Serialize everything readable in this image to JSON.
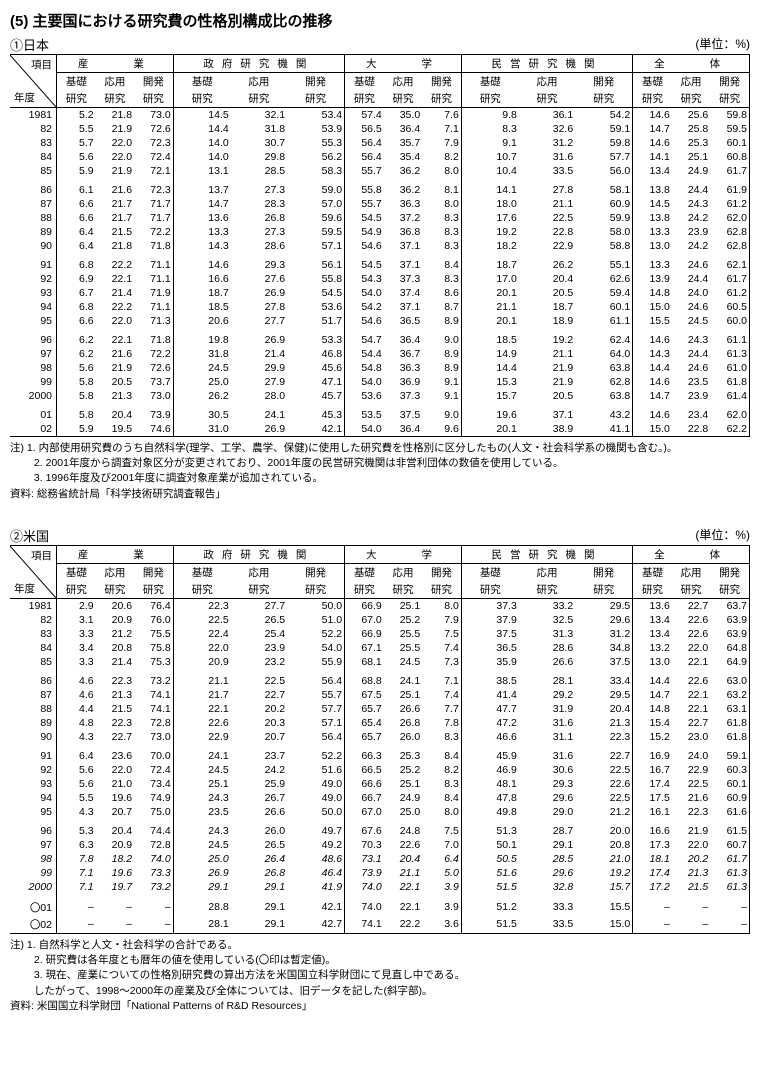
{
  "title": "(5)  主要国における研究費の性格別構成比の推移",
  "unit": "(単位：%)",
  "header": {
    "item": "項目",
    "year": "年度",
    "groups": [
      "産　　業",
      "政府研究機関",
      "大　　学",
      "民営研究機関",
      "全　　体"
    ],
    "subs_top": [
      "基礎",
      "応用",
      "開発"
    ],
    "subs_bot": [
      "研究",
      "研究",
      "研究"
    ]
  },
  "japan": {
    "label": "①日本",
    "rows": [
      {
        "y": "1981",
        "v": [
          "5.2",
          "21.8",
          "73.0",
          "14.5",
          "32.1",
          "53.4",
          "57.4",
          "35.0",
          "7.6",
          "9.8",
          "36.1",
          "54.2",
          "14.6",
          "25.6",
          "59.8"
        ]
      },
      {
        "y": "82",
        "v": [
          "5.5",
          "21.9",
          "72.6",
          "14.4",
          "31.8",
          "53.9",
          "56.5",
          "36.4",
          "7.1",
          "8.3",
          "32.6",
          "59.1",
          "14.7",
          "25.8",
          "59.5"
        ]
      },
      {
        "y": "83",
        "v": [
          "5.7",
          "22.0",
          "72.3",
          "14.0",
          "30.7",
          "55.3",
          "56.4",
          "35.7",
          "7.9",
          "9.1",
          "31.2",
          "59.8",
          "14.6",
          "25.3",
          "60.1"
        ]
      },
      {
        "y": "84",
        "v": [
          "5.6",
          "22.0",
          "72.4",
          "14.0",
          "29.8",
          "56.2",
          "56.4",
          "35.4",
          "8.2",
          "10.7",
          "31.6",
          "57.7",
          "14.1",
          "25.1",
          "60.8"
        ]
      },
      {
        "y": "85",
        "v": [
          "5.9",
          "21.9",
          "72.1",
          "13.1",
          "28.5",
          "58.3",
          "55.7",
          "36.2",
          "8.0",
          "10.4",
          "33.5",
          "56.0",
          "13.4",
          "24.9",
          "61.7"
        ]
      },
      {
        "y": "86",
        "v": [
          "6.1",
          "21.6",
          "72.3",
          "13.7",
          "27.3",
          "59.0",
          "55.8",
          "36.2",
          "8.1",
          "14.1",
          "27.8",
          "58.1",
          "13.8",
          "24.4",
          "61.9"
        ],
        "gap": true
      },
      {
        "y": "87",
        "v": [
          "6.6",
          "21.7",
          "71.7",
          "14.7",
          "28.3",
          "57.0",
          "55.7",
          "36.3",
          "8.0",
          "18.0",
          "21.1",
          "60.9",
          "14.5",
          "24.3",
          "61.2"
        ]
      },
      {
        "y": "88",
        "v": [
          "6.6",
          "21.7",
          "71.7",
          "13.6",
          "26.8",
          "59.6",
          "54.5",
          "37.2",
          "8.3",
          "17.6",
          "22.5",
          "59.9",
          "13.8",
          "24.2",
          "62.0"
        ]
      },
      {
        "y": "89",
        "v": [
          "6.4",
          "21.5",
          "72.2",
          "13.3",
          "27.3",
          "59.5",
          "54.9",
          "36.8",
          "8.3",
          "19.2",
          "22.8",
          "58.0",
          "13.3",
          "23.9",
          "62.8"
        ]
      },
      {
        "y": "90",
        "v": [
          "6.4",
          "21.8",
          "71.8",
          "14.3",
          "28.6",
          "57.1",
          "54.6",
          "37.1",
          "8.3",
          "18.2",
          "22.9",
          "58.8",
          "13.0",
          "24.2",
          "62.8"
        ]
      },
      {
        "y": "91",
        "v": [
          "6.8",
          "22.2",
          "71.1",
          "14.6",
          "29.3",
          "56.1",
          "54.5",
          "37.1",
          "8.4",
          "18.7",
          "26.2",
          "55.1",
          "13.3",
          "24.6",
          "62.1"
        ],
        "gap": true
      },
      {
        "y": "92",
        "v": [
          "6.9",
          "22.1",
          "71.1",
          "16.6",
          "27.6",
          "55.8",
          "54.3",
          "37.3",
          "8.3",
          "17.0",
          "20.4",
          "62.6",
          "13.9",
          "24.4",
          "61.7"
        ]
      },
      {
        "y": "93",
        "v": [
          "6.7",
          "21.4",
          "71.9",
          "18.7",
          "26.9",
          "54.5",
          "54.0",
          "37.4",
          "8.6",
          "20.1",
          "20.5",
          "59.4",
          "14.8",
          "24.0",
          "61.2"
        ]
      },
      {
        "y": "94",
        "v": [
          "6.8",
          "22.2",
          "71.1",
          "18.5",
          "27.8",
          "53.6",
          "54.2",
          "37.1",
          "8.7",
          "21.1",
          "18.7",
          "60.1",
          "15.0",
          "24.6",
          "60.5"
        ]
      },
      {
        "y": "95",
        "v": [
          "6.6",
          "22.0",
          "71.3",
          "20.6",
          "27.7",
          "51.7",
          "54.6",
          "36.5",
          "8.9",
          "20.1",
          "18.9",
          "61.1",
          "15.5",
          "24.5",
          "60.0"
        ]
      },
      {
        "y": "96",
        "v": [
          "6.2",
          "22.1",
          "71.8",
          "19.8",
          "26.9",
          "53.3",
          "54.7",
          "36.4",
          "9.0",
          "18.5",
          "19.2",
          "62.4",
          "14.6",
          "24.3",
          "61.1"
        ],
        "gap": true
      },
      {
        "y": "97",
        "v": [
          "6.2",
          "21.6",
          "72.2",
          "31.8",
          "21.4",
          "46.8",
          "54.4",
          "36.7",
          "8.9",
          "14.9",
          "21.1",
          "64.0",
          "14.3",
          "24.4",
          "61.3"
        ]
      },
      {
        "y": "98",
        "v": [
          "5.6",
          "21.9",
          "72.6",
          "24.5",
          "29.9",
          "45.6",
          "54.8",
          "36.3",
          "8.9",
          "14.4",
          "21.9",
          "63.8",
          "14.4",
          "24.6",
          "61.0"
        ]
      },
      {
        "y": "99",
        "v": [
          "5.8",
          "20.5",
          "73.7",
          "25.0",
          "27.9",
          "47.1",
          "54.0",
          "36.9",
          "9.1",
          "15.3",
          "21.9",
          "62.8",
          "14.6",
          "23.5",
          "61.8"
        ]
      },
      {
        "y": "2000",
        "v": [
          "5.8",
          "21.3",
          "73.0",
          "26.2",
          "28.0",
          "45.7",
          "53.6",
          "37.3",
          "9.1",
          "15.7",
          "20.5",
          "63.8",
          "14.7",
          "23.9",
          "61.4"
        ]
      },
      {
        "y": "01",
        "v": [
          "5.8",
          "20.4",
          "73.9",
          "30.5",
          "24.1",
          "45.3",
          "53.5",
          "37.5",
          "9.0",
          "19.6",
          "37.1",
          "43.2",
          "14.6",
          "23.4",
          "62.0"
        ],
        "gap": true
      },
      {
        "y": "02",
        "v": [
          "5.9",
          "19.5",
          "74.6",
          "31.0",
          "26.9",
          "42.1",
          "54.0",
          "36.4",
          "9.6",
          "20.1",
          "38.9",
          "41.1",
          "15.0",
          "22.8",
          "62.2"
        ]
      }
    ],
    "notes": [
      "注)  1. 内部使用研究費のうち自然科学(理学、工学、農学、保健)に使用した研究費を性格別に区分したもの(人文・社会科学系の機関も含む。)。",
      "　　 2. 2001年度から調査対象区分が変更されており、2001年度の民営研究機関は非営利団体の数値を使用している。",
      "　　 3. 1996年度及び2001年度に調査対象産業が追加されている。",
      "資料: 総務省統計局「科学技術研究調査報告」"
    ]
  },
  "us": {
    "label": "②米国",
    "rows": [
      {
        "y": "1981",
        "v": [
          "2.9",
          "20.6",
          "76.4",
          "22.3",
          "27.7",
          "50.0",
          "66.9",
          "25.1",
          "8.0",
          "37.3",
          "33.2",
          "29.5",
          "13.6",
          "22.7",
          "63.7"
        ]
      },
      {
        "y": "82",
        "v": [
          "3.1",
          "20.9",
          "76.0",
          "22.5",
          "26.5",
          "51.0",
          "67.0",
          "25.2",
          "7.9",
          "37.9",
          "32.5",
          "29.6",
          "13.4",
          "22.6",
          "63.9"
        ]
      },
      {
        "y": "83",
        "v": [
          "3.3",
          "21.2",
          "75.5",
          "22.4",
          "25.4",
          "52.2",
          "66.9",
          "25.5",
          "7.5",
          "37.5",
          "31.3",
          "31.2",
          "13.4",
          "22.6",
          "63.9"
        ]
      },
      {
        "y": "84",
        "v": [
          "3.4",
          "20.8",
          "75.8",
          "22.0",
          "23.9",
          "54.0",
          "67.1",
          "25.5",
          "7.4",
          "36.5",
          "28.6",
          "34.8",
          "13.2",
          "22.0",
          "64.8"
        ]
      },
      {
        "y": "85",
        "v": [
          "3.3",
          "21.4",
          "75.3",
          "20.9",
          "23.2",
          "55.9",
          "68.1",
          "24.5",
          "7.3",
          "35.9",
          "26.6",
          "37.5",
          "13.0",
          "22.1",
          "64.9"
        ]
      },
      {
        "y": "86",
        "v": [
          "4.6",
          "22.3",
          "73.2",
          "21.1",
          "22.5",
          "56.4",
          "68.8",
          "24.1",
          "7.1",
          "38.5",
          "28.1",
          "33.4",
          "14.4",
          "22.6",
          "63.0"
        ],
        "gap": true
      },
      {
        "y": "87",
        "v": [
          "4.6",
          "21.3",
          "74.1",
          "21.7",
          "22.7",
          "55.7",
          "67.5",
          "25.1",
          "7.4",
          "41.4",
          "29.2",
          "29.5",
          "14.7",
          "22.1",
          "63.2"
        ]
      },
      {
        "y": "88",
        "v": [
          "4.4",
          "21.5",
          "74.1",
          "22.1",
          "20.2",
          "57.7",
          "65.7",
          "26.6",
          "7.7",
          "47.7",
          "31.9",
          "20.4",
          "14.8",
          "22.1",
          "63.1"
        ]
      },
      {
        "y": "89",
        "v": [
          "4.8",
          "22.3",
          "72.8",
          "22.6",
          "20.3",
          "57.1",
          "65.4",
          "26.8",
          "7.8",
          "47.2",
          "31.6",
          "21.3",
          "15.4",
          "22.7",
          "61.8"
        ]
      },
      {
        "y": "90",
        "v": [
          "4.3",
          "22.7",
          "73.0",
          "22.9",
          "20.7",
          "56.4",
          "65.7",
          "26.0",
          "8.3",
          "46.6",
          "31.1",
          "22.3",
          "15.2",
          "23.0",
          "61.8"
        ]
      },
      {
        "y": "91",
        "v": [
          "6.4",
          "23.6",
          "70.0",
          "24.1",
          "23.7",
          "52.2",
          "66.3",
          "25.3",
          "8.4",
          "45.9",
          "31.6",
          "22.7",
          "16.9",
          "24.0",
          "59.1"
        ],
        "gap": true
      },
      {
        "y": "92",
        "v": [
          "5.6",
          "22.0",
          "72.4",
          "24.5",
          "24.2",
          "51.6",
          "66.5",
          "25.2",
          "8.2",
          "46.9",
          "30.6",
          "22.5",
          "16.7",
          "22.9",
          "60.3"
        ]
      },
      {
        "y": "93",
        "v": [
          "5.6",
          "21.0",
          "73.4",
          "25.1",
          "25.9",
          "49.0",
          "66.6",
          "25.1",
          "8.3",
          "48.1",
          "29.3",
          "22.6",
          "17.4",
          "22.5",
          "60.1"
        ]
      },
      {
        "y": "94",
        "v": [
          "5.5",
          "19.6",
          "74.9",
          "24.3",
          "26.7",
          "49.0",
          "66.7",
          "24.9",
          "8.4",
          "47.8",
          "29.6",
          "22.5",
          "17.5",
          "21.6",
          "60.9"
        ]
      },
      {
        "y": "95",
        "v": [
          "4.3",
          "20.7",
          "75.0",
          "23.5",
          "26.6",
          "50.0",
          "67.0",
          "25.0",
          "8.0",
          "49.8",
          "29.0",
          "21.2",
          "16.1",
          "22.3",
          "61.6"
        ]
      },
      {
        "y": "96",
        "v": [
          "5.3",
          "20.4",
          "74.4",
          "24.3",
          "26.0",
          "49.7",
          "67.6",
          "24.8",
          "7.5",
          "51.3",
          "28.7",
          "20.0",
          "16.6",
          "21.9",
          "61.5"
        ],
        "gap": true
      },
      {
        "y": "97",
        "v": [
          "6.3",
          "20.9",
          "72.8",
          "24.5",
          "26.5",
          "49.2",
          "70.3",
          "22.6",
          "7.0",
          "50.1",
          "29.1",
          "20.8",
          "17.3",
          "22.0",
          "60.7"
        ]
      },
      {
        "y": "98",
        "v": [
          "7.8",
          "18.2",
          "74.0",
          "25.0",
          "26.4",
          "48.6",
          "73.1",
          "20.4",
          "6.4",
          "50.5",
          "28.5",
          "21.0",
          "18.1",
          "20.2",
          "61.7"
        ],
        "italic": true
      },
      {
        "y": "99",
        "v": [
          "7.1",
          "19.6",
          "73.3",
          "26.9",
          "26.8",
          "46.4",
          "73.9",
          "21.1",
          "5.0",
          "51.6",
          "29.6",
          "19.2",
          "17.4",
          "21.3",
          "61.3"
        ],
        "italic": true
      },
      {
        "y": "2000",
        "v": [
          "7.1",
          "19.7",
          "73.2",
          "29.1",
          "29.1",
          "41.9",
          "74.0",
          "22.1",
          "3.9",
          "51.5",
          "32.8",
          "15.7",
          "17.2",
          "21.5",
          "61.3"
        ],
        "italic": true
      },
      {
        "y": "〇01",
        "v": [
          "–",
          "–",
          "–",
          "28.8",
          "29.1",
          "42.1",
          "74.0",
          "22.1",
          "3.9",
          "51.2",
          "33.3",
          "15.5",
          "–",
          "–",
          "–"
        ],
        "gap": true
      },
      {
        "y": "〇02",
        "v": [
          "–",
          "–",
          "–",
          "28.1",
          "29.1",
          "42.7",
          "74.1",
          "22.2",
          "3.6",
          "51.5",
          "33.5",
          "15.0",
          "–",
          "–",
          "–"
        ]
      }
    ],
    "notes": [
      "注)  1. 自然科学と人文・社会科学の合計である。",
      "　　 2. 研究費は各年度とも暦年の値を使用している(〇印は暫定値)。",
      "　　 3. 現在、産業についての性格別研究費の算出方法を米国国立科学財団にて見直し中である。",
      "　　    したがって、1998～2000年の産業及び全体については、旧データを記した(斜字部)。",
      "資料: 米国国立科学財団「National Patterns of R&D Resources」"
    ]
  }
}
